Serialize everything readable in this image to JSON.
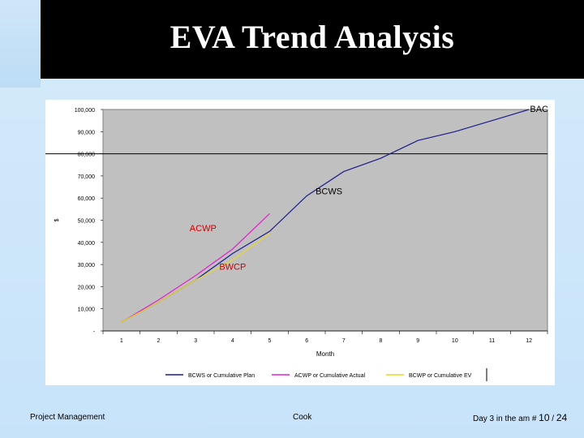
{
  "slide": {
    "title": "EVA Trend Analysis",
    "footer_left": "Project Management",
    "footer_center": "Cook",
    "footer_right_prefix": "Day 3 in the am # ",
    "page_current": "10",
    "page_separator": " / ",
    "page_total": "24"
  },
  "colors": {
    "header": "#000000",
    "plot_bg": "#c0c0c0",
    "bcws": "#1c1c8c",
    "acwp": "#e020d0",
    "bcwp": "#e8d820",
    "label_red": "#cc0000"
  },
  "chart_data": {
    "type": "line",
    "xlabel": "Month",
    "ylabel": "$",
    "categories": [
      "1",
      "2",
      "3",
      "4",
      "5",
      "6",
      "7",
      "8",
      "9",
      "10",
      "11",
      "12"
    ],
    "ylim": [
      0,
      100000
    ],
    "y_ticks": [
      "-",
      "10,000",
      "20,000",
      "30,000",
      "40,000",
      "50,000",
      "60,000",
      "70,000",
      "80,000",
      "90,000",
      "100,000"
    ],
    "grid": "horizontal line at 80,000",
    "reference_line": {
      "y": 80000
    },
    "series": [
      {
        "name": "BCWS or Cumulative Plan",
        "color": "#1c1c8c",
        "x": [
          1,
          2,
          3,
          4,
          5,
          6,
          7,
          8,
          9,
          10,
          11,
          12
        ],
        "values": [
          4000,
          13000,
          23000,
          35000,
          45000,
          61000,
          72000,
          78000,
          86000,
          90000,
          95000,
          100000
        ]
      },
      {
        "name": "ACWP or Cumulative Actual",
        "color": "#e020d0",
        "x": [
          1,
          2,
          3,
          4,
          5
        ],
        "values": [
          4000,
          14000,
          25000,
          37000,
          53000
        ]
      },
      {
        "name": "BCWP or Cumulative EV",
        "color": "#e8d820",
        "x": [
          1,
          2,
          3,
          4,
          5
        ],
        "values": [
          4000,
          13000,
          23000,
          32000,
          44000
        ]
      }
    ],
    "annotations": [
      {
        "text": "BAC",
        "x": 12,
        "y": 100000
      },
      {
        "text": "BCWS",
        "x": 6.6,
        "y": 61000
      },
      {
        "text": "ACWP",
        "x": 3.2,
        "y": 44000
      },
      {
        "text": "BWCP",
        "x": 4.0,
        "y": 27000
      }
    ],
    "legend": "bottom"
  }
}
